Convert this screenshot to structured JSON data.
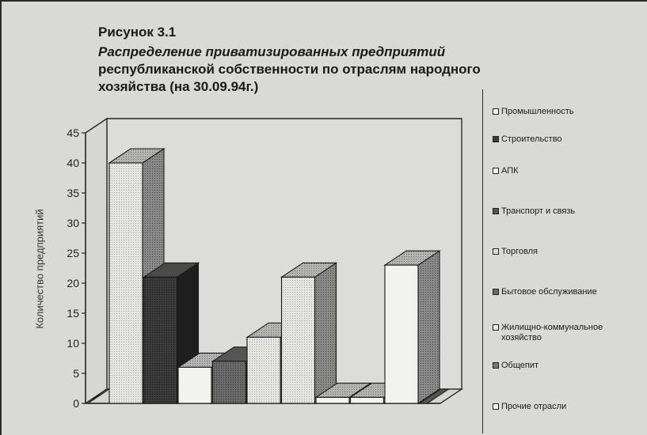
{
  "figure": {
    "label": "Рисунок 3.1",
    "title_italic": "Распределение приватизированных предприятий",
    "title_line2": "республиканской собственности по отраслям народного",
    "title_line3": "хозяйства (на 30.09.94г.)"
  },
  "chart_data": {
    "type": "bar",
    "categories": [
      "Промышленность",
      "Строительство",
      "АПК",
      "Транспорт и связь",
      "Торговля",
      "Бытовое обслуживание",
      "Жилищно-коммунальное хозяйство",
      "Общепит",
      "Прочие отрасли"
    ],
    "values": [
      40,
      21,
      6,
      7,
      11,
      21,
      1,
      1,
      23
    ],
    "ylabel": "Количество предприятий",
    "ylim": [
      0,
      45
    ],
    "yticks": [
      "0",
      "5",
      "10",
      "15",
      "20",
      "25",
      "30",
      "35",
      "40",
      "45"
    ],
    "grid": true,
    "legend_position": "right",
    "extra_zero_bar": true
  },
  "legend": {
    "items": [
      {
        "label": "Промышленность",
        "fill": "#f4f4f2"
      },
      {
        "label": "Строительство",
        "fill": "#3a3a3a"
      },
      {
        "label": "АПК",
        "fill": "#f4f4f2"
      },
      {
        "label": "Транспорт и связь",
        "fill": "#555555"
      },
      {
        "label": "Торговля",
        "fill": "#dcdcdc"
      },
      {
        "label": "Бытовое обслуживание",
        "fill": "#6a6a6a"
      },
      {
        "label": "Жилищно-коммунальное хозяйство",
        "fill": "#ececec"
      },
      {
        "label": "Общепит",
        "fill": "#7a7a7a"
      },
      {
        "label": "Прочие отрасли",
        "fill": "#f4f4f2"
      }
    ]
  },
  "colors": {
    "background": "#d9d9d7",
    "ink": "#1a1a1a"
  }
}
